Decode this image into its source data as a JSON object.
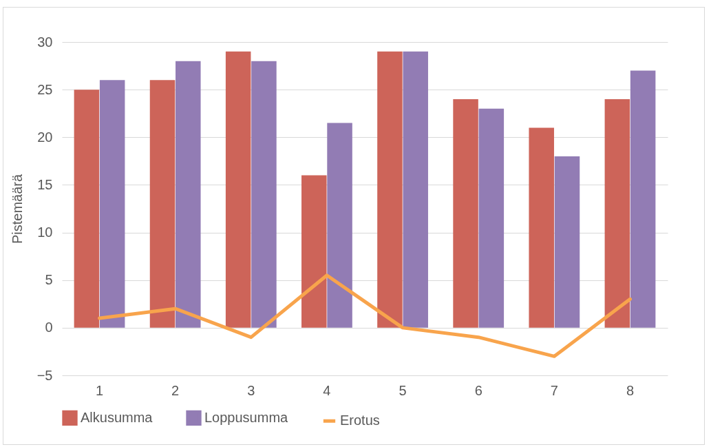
{
  "chart_data": {
    "type": "bar",
    "ylabel": "Pistemäärä",
    "categories": [
      "1",
      "2",
      "3",
      "4",
      "5",
      "6",
      "7",
      "8"
    ],
    "ylim": [
      -5,
      30
    ],
    "yticks": [
      -5,
      0,
      5,
      10,
      15,
      20,
      25,
      30
    ],
    "grid": "y",
    "legend": "bottom",
    "series": [
      {
        "name": "Alkusumma",
        "color": "#cd6459",
        "values": [
          25,
          26,
          29,
          16,
          29,
          24,
          21,
          24
        ]
      },
      {
        "name": "Loppusumma",
        "color": "#927cb4",
        "values": [
          26,
          28,
          28,
          21.5,
          29,
          23,
          18,
          27
        ]
      },
      {
        "name": "Erotus",
        "type": "line",
        "color": "#f8a44c",
        "values": [
          1,
          2,
          -1,
          5.5,
          0,
          -1,
          -3,
          3
        ]
      }
    ]
  }
}
